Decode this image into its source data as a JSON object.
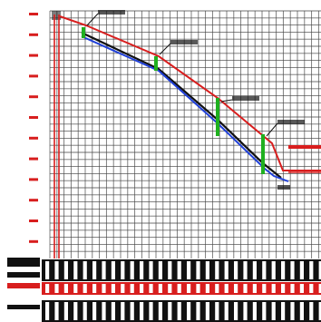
{
  "app": {
    "kind": "engineering profile drawing (blurred, low-resolution)"
  },
  "colors": {
    "background": "#ffffff",
    "grid": "#444444",
    "ground_line": "#d81e1e",
    "pipe_line": "#1f3fd8",
    "dark_line": "#111111",
    "structure_marker": "#1fb01f",
    "table_red": "#d81e1e",
    "table_black": "#111111"
  },
  "annotations": {
    "callout_texts": [
      "",
      "",
      "",
      ""
    ],
    "end_label": ""
  },
  "profile": {
    "structure_count": 4,
    "has_left_vertical_scale": true,
    "has_bottom_table_rows": 3
  }
}
